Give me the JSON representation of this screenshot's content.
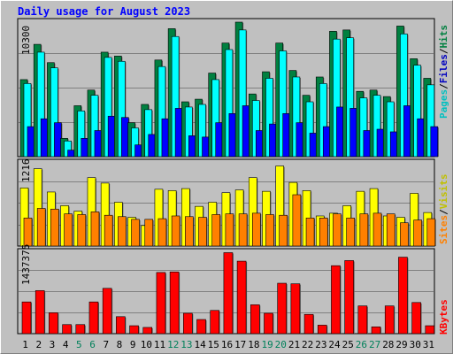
{
  "chart_data": [
    {
      "type": "bar",
      "title": "Daily usage for August 2023",
      "categories": [
        "1",
        "2",
        "3",
        "4",
        "5",
        "6",
        "7",
        "8",
        "9",
        "10",
        "11",
        "12",
        "13",
        "14",
        "15",
        "16",
        "17",
        "18",
        "19",
        "20",
        "21",
        "22",
        "23",
        "24",
        "25",
        "26",
        "27",
        "28",
        "29",
        "30",
        "31"
      ],
      "weekend_days": [
        "5",
        "6",
        "12",
        "13",
        "19",
        "20",
        "26",
        "27"
      ],
      "ymax_label": "10300",
      "ylim": [
        0,
        10300
      ],
      "series": [
        {
          "name": "Hits",
          "color": "#008040",
          "values": [
            5900,
            8600,
            7200,
            1400,
            3900,
            5100,
            8000,
            7700,
            2600,
            4000,
            7400,
            9800,
            4200,
            4400,
            6400,
            8700,
            10300,
            4800,
            6500,
            8700,
            6600,
            4700,
            6100,
            9600,
            9700,
            5000,
            5100,
            4600,
            10000,
            7500,
            6000
          ]
        },
        {
          "name": "Files",
          "color": "#00ffff",
          "values": [
            5600,
            8000,
            6800,
            1200,
            3500,
            4700,
            7600,
            7300,
            2200,
            3600,
            6900,
            9200,
            3800,
            4000,
            5900,
            8200,
            9700,
            4300,
            6000,
            8100,
            6100,
            4200,
            5600,
            9000,
            9100,
            4500,
            4700,
            4200,
            9400,
            7000,
            5500
          ]
        },
        {
          "name": "Pages",
          "color": "#0000ff",
          "values": [
            2300,
            2900,
            2600,
            500,
            1400,
            2000,
            3100,
            3000,
            900,
            1700,
            2900,
            3700,
            1600,
            1500,
            2600,
            3300,
            3900,
            2000,
            2500,
            3300,
            2600,
            1800,
            2300,
            3800,
            3700,
            2000,
            2100,
            1900,
            3900,
            2900,
            2300
          ]
        }
      ],
      "legend": [
        "Pages",
        "Files",
        "Hits"
      ]
    },
    {
      "type": "bar",
      "categories": [
        "1",
        "2",
        "3",
        "4",
        "5",
        "6",
        "7",
        "8",
        "9",
        "10",
        "11",
        "12",
        "13",
        "14",
        "15",
        "16",
        "17",
        "18",
        "19",
        "20",
        "21",
        "22",
        "23",
        "24",
        "25",
        "26",
        "27",
        "28",
        "29",
        "30",
        "31"
      ],
      "ymax_label": "1216",
      "ylim": [
        0,
        1216
      ],
      "series": [
        {
          "name": "Visits",
          "color": "#ffff00",
          "values": [
            850,
            1130,
            790,
            590,
            510,
            1000,
            920,
            640,
            420,
            300,
            830,
            810,
            840,
            580,
            640,
            780,
            820,
            1000,
            800,
            1170,
            930,
            810,
            440,
            480,
            590,
            800,
            840,
            440,
            420,
            770,
            490
          ]
        },
        {
          "name": "Sites",
          "color": "#ff8000",
          "values": [
            410,
            550,
            540,
            470,
            460,
            500,
            450,
            430,
            390,
            390,
            400,
            440,
            430,
            420,
            460,
            470,
            470,
            480,
            460,
            450,
            750,
            410,
            410,
            470,
            410,
            470,
            480,
            470,
            340,
            380,
            400
          ]
        }
      ],
      "legend": [
        "Sites",
        "Visits"
      ]
    },
    {
      "type": "bar",
      "categories": [
        "1",
        "2",
        "3",
        "4",
        "5",
        "6",
        "7",
        "8",
        "9",
        "10",
        "11",
        "12",
        "13",
        "14",
        "15",
        "16",
        "17",
        "18",
        "19",
        "20",
        "21",
        "22",
        "23",
        "24",
        "25",
        "26",
        "27",
        "28",
        "29",
        "30",
        "31"
      ],
      "ymax_label": "1437375",
      "ylim": [
        0,
        1437375
      ],
      "series": [
        {
          "name": "KBytes",
          "color": "#ff0000",
          "values": [
            560000,
            760000,
            370000,
            160000,
            160000,
            560000,
            800000,
            300000,
            140000,
            110000,
            1080000,
            1090000,
            360000,
            250000,
            410000,
            1430000,
            1280000,
            510000,
            360000,
            890000,
            880000,
            340000,
            150000,
            1200000,
            1290000,
            490000,
            120000,
            490000,
            1350000,
            550000,
            140000
          ]
        }
      ],
      "legend": [
        "KBytes"
      ]
    }
  ]
}
